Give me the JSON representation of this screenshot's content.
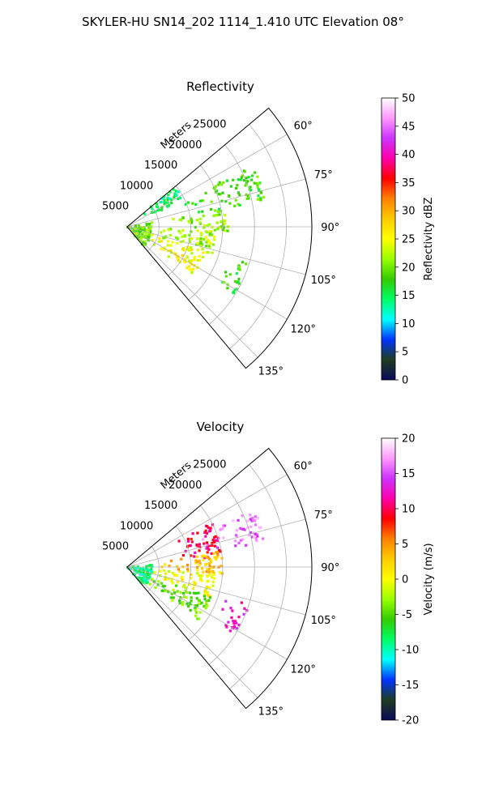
{
  "suptitle": "SKYLER-HU  SN14_202  1114_1.410 UTC Elevation 08°",
  "colors": {
    "reflectivity_stops": [
      "#0a0a5a",
      "#1f3d1f",
      "#0033ff",
      "#00ffff",
      "#00ff66",
      "#33cc00",
      "#99ff00",
      "#ffff00",
      "#ffcc00",
      "#ff8000",
      "#ff0000",
      "#ff00aa",
      "#cc33ff",
      "#ff99ff",
      "#ffffff"
    ],
    "velocity_stops": [
      "#0a0a5a",
      "#1f3d1f",
      "#0033ff",
      "#00ffff",
      "#00ff66",
      "#33cc00",
      "#99ff00",
      "#ffff00",
      "#ffcc00",
      "#ff8000",
      "#ff0000",
      "#ff00aa",
      "#cc33ff",
      "#ff99ff",
      "#ffffff"
    ]
  },
  "chart_data": [
    {
      "type": "heatmap",
      "projection": "polar-sector",
      "title": "Reflectivity",
      "radial_label": "Meters",
      "radial_ticks": [
        "5000",
        "10000",
        "15000",
        "20000",
        "25000"
      ],
      "radial_tick_values": [
        5000,
        10000,
        15000,
        20000,
        25000
      ],
      "rlim": [
        0,
        29000
      ],
      "angle_ticks": [
        "60°",
        "75°",
        "90°",
        "105°",
        "120°",
        "135°"
      ],
      "angle_tick_values": [
        60,
        75,
        90,
        105,
        120,
        135
      ],
      "theta_range_deg": [
        50,
        140
      ],
      "grid": true,
      "colorbar": {
        "label": "Reflectivity dBZ",
        "range": [
          0,
          50
        ],
        "ticks": [
          "0",
          "5",
          "10",
          "15",
          "20",
          "25",
          "30",
          "35",
          "40",
          "45",
          "50"
        ],
        "tick_values": [
          0,
          5,
          10,
          15,
          20,
          25,
          30,
          35,
          40,
          45,
          50
        ]
      },
      "echo_regions": [
        {
          "theta": [
            64,
            80
          ],
          "r": [
            9000,
            22000
          ],
          "value": 18
        },
        {
          "theta": [
            80,
            93
          ],
          "r": [
            7000,
            16000
          ],
          "value": 21
        },
        {
          "theta": [
            93,
            108
          ],
          "r": [
            3000,
            14000
          ],
          "value": 22
        },
        {
          "theta": [
            108,
            126
          ],
          "r": [
            4000,
            13000
          ],
          "value": 25
        },
        {
          "theta": [
            50,
            64
          ],
          "r": [
            2000,
            10000
          ],
          "value": 14
        },
        {
          "theta": [
            80,
            140
          ],
          "r": [
            0,
            4000
          ],
          "value": 20
        },
        {
          "theta": [
            107,
            122
          ],
          "r": [
            16000,
            20000
          ],
          "value": 18
        }
      ]
    },
    {
      "type": "heatmap",
      "projection": "polar-sector",
      "title": "Velocity",
      "radial_label": "Meters",
      "radial_ticks": [
        "5000",
        "10000",
        "15000",
        "20000",
        "25000"
      ],
      "radial_tick_values": [
        5000,
        10000,
        15000,
        20000,
        25000
      ],
      "rlim": [
        0,
        29000
      ],
      "angle_ticks": [
        "60°",
        "75°",
        "90°",
        "105°",
        "120°",
        "135°"
      ],
      "angle_tick_values": [
        60,
        75,
        90,
        105,
        120,
        135
      ],
      "theta_range_deg": [
        50,
        140
      ],
      "grid": true,
      "colorbar": {
        "label": "Velocity (m/s)",
        "range": [
          -20,
          20
        ],
        "ticks": [
          "-20",
          "-15",
          "-10",
          "-5",
          "0",
          "5",
          "10",
          "15",
          "20"
        ],
        "tick_values": [
          -20,
          -15,
          -10,
          -5,
          0,
          5,
          10,
          15,
          20
        ]
      },
      "echo_regions": [
        {
          "theta": [
            66,
            80
          ],
          "r": [
            12000,
            22000
          ],
          "value": 16
        },
        {
          "theta": [
            62,
            84
          ],
          "r": [
            8000,
            15000
          ],
          "value": 10
        },
        {
          "theta": [
            80,
            95
          ],
          "r": [
            5000,
            15000
          ],
          "value": 3
        },
        {
          "theta": [
            95,
            110
          ],
          "r": [
            3000,
            14000
          ],
          "value": 0
        },
        {
          "theta": [
            110,
            127
          ],
          "r": [
            3000,
            14000
          ],
          "value": -4
        },
        {
          "theta": [
            85,
            140
          ],
          "r": [
            0,
            4000
          ],
          "value": -9
        },
        {
          "theta": [
            107,
            122
          ],
          "r": [
            16000,
            20000
          ],
          "value": 12
        }
      ]
    }
  ]
}
